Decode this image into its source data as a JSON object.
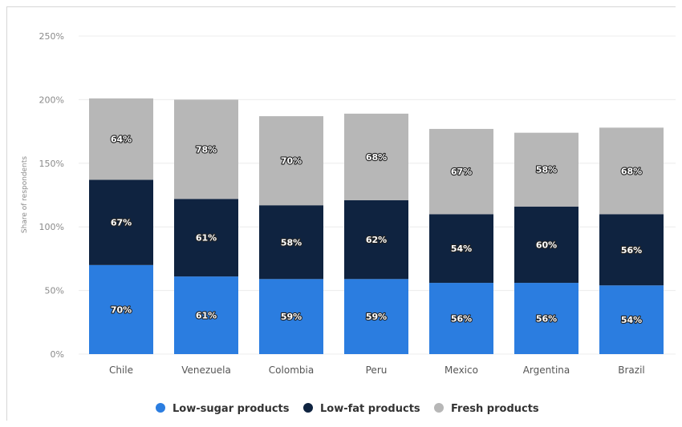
{
  "chart_data": {
    "type": "bar",
    "stacked": true,
    "title": "",
    "xlabel": "",
    "ylabel": "Share of respondents",
    "ylim": [
      0,
      250
    ],
    "yticks": [
      0,
      50,
      100,
      150,
      200,
      250
    ],
    "ytick_labels": [
      "0%",
      "50%",
      "100%",
      "150%",
      "200%",
      "250%"
    ],
    "grid": true,
    "legend_position": "bottom",
    "categories": [
      "Chile",
      "Venezuela",
      "Colombia",
      "Peru",
      "Mexico",
      "Argentina",
      "Brazil"
    ],
    "series": [
      {
        "name": "Low-sugar products",
        "color": "#2b7de0",
        "values": [
          70,
          61,
          59,
          59,
          56,
          56,
          54
        ],
        "labels": [
          "70%",
          "61%",
          "59%",
          "59%",
          "56%",
          "56%",
          "54%"
        ]
      },
      {
        "name": "Low-fat products",
        "color": "#0f2340",
        "values": [
          67,
          61,
          58,
          62,
          54,
          60,
          56
        ],
        "labels": [
          "67%",
          "61%",
          "58%",
          "62%",
          "54%",
          "60%",
          "56%"
        ]
      },
      {
        "name": "Fresh products",
        "color": "#b7b7b7",
        "values": [
          64,
          78,
          70,
          68,
          67,
          58,
          68
        ],
        "labels": [
          "64%",
          "78%",
          "70%",
          "68%",
          "67%",
          "58%",
          "68%"
        ]
      }
    ]
  }
}
